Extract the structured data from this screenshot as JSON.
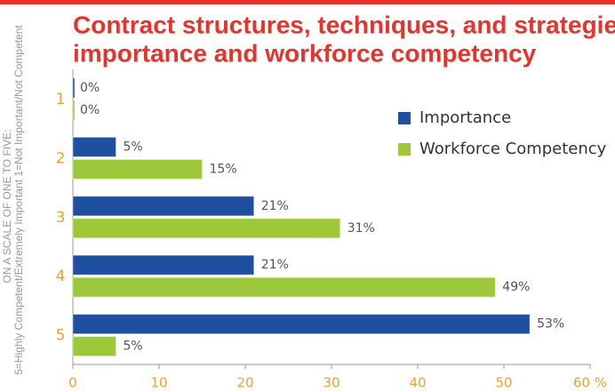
{
  "chart_data": {
    "type": "hbar",
    "title_lines": [
      "Contract structures, techniques, and strategies",
      "importance and workforce competency"
    ],
    "y_label_lines": [
      "ON A SCALE OF ONE TO FIVE:",
      "5=Highly Competent/Extremely Important   1=Not Important/Not Competent"
    ],
    "categories": [
      "1",
      "2",
      "3",
      "4",
      "5"
    ],
    "series": [
      {
        "name": "Importance",
        "color": "#1f4fa0",
        "values": [
          0,
          5,
          21,
          21,
          53
        ],
        "value_labels": [
          "0%",
          "5%",
          "21%",
          "21%",
          "53%"
        ]
      },
      {
        "name": "Workforce Competency",
        "color": "#9cc83a",
        "values": [
          0,
          15,
          31,
          49,
          5
        ],
        "value_labels": [
          "0%",
          "15%",
          "31%",
          "49%",
          "5%"
        ]
      }
    ],
    "xlim": [
      0,
      60
    ],
    "xticks": [
      0,
      10,
      20,
      30,
      40,
      50,
      {
        "value": 60,
        "label": "60 %"
      }
    ],
    "legend": "upper right"
  }
}
